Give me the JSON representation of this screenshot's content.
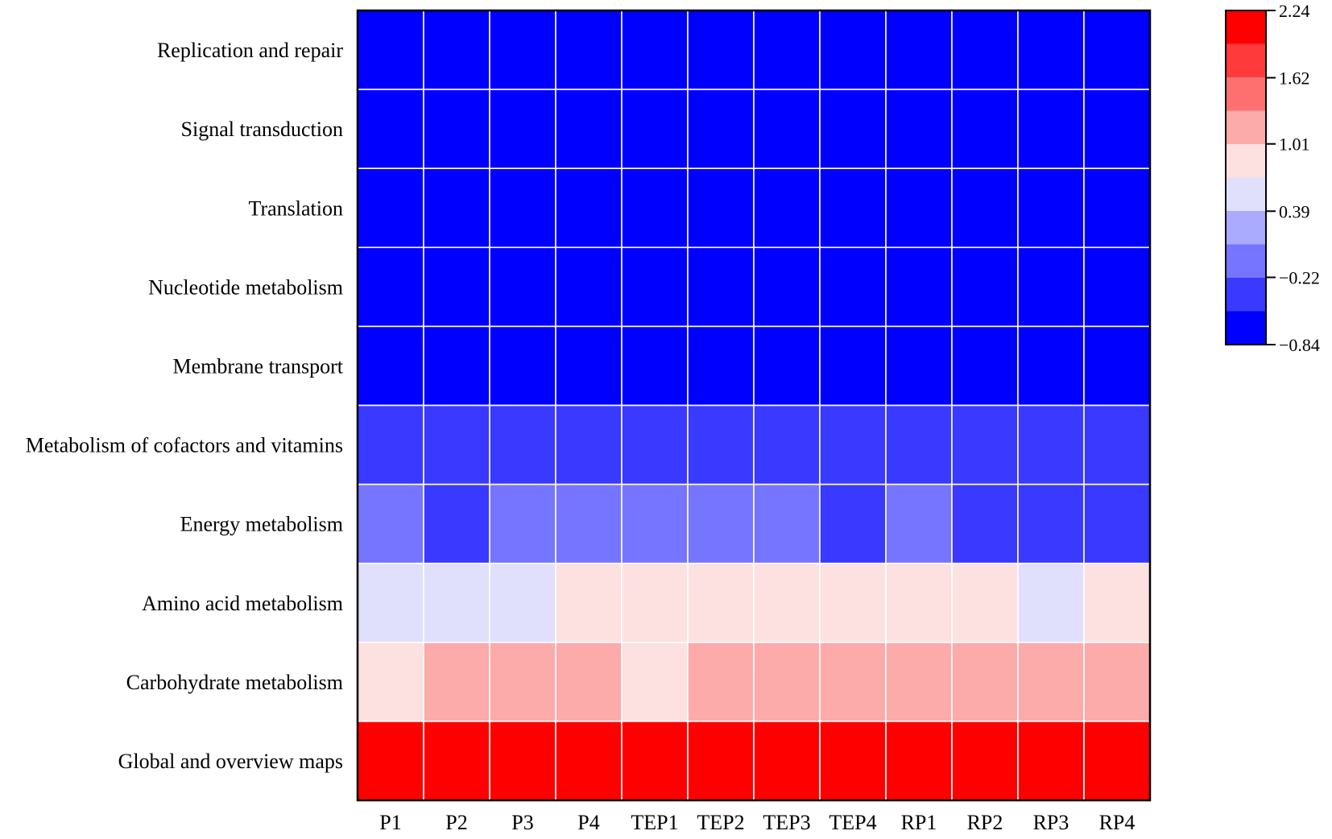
{
  "chart_data": {
    "type": "heatmap",
    "title": "",
    "xlabel": "",
    "ylabel": "",
    "columns": [
      "P1",
      "P2",
      "P3",
      "P4",
      "TEP1",
      "TEP2",
      "TEP3",
      "TEP4",
      "RP1",
      "RP2",
      "RP3",
      "RP4"
    ],
    "rows": [
      "Replication and repair",
      "Signal transduction",
      "Translation",
      "Nucleotide metabolism",
      "Membrane transport",
      "Metabolism of cofactors and vitamins",
      "Energy metabolism",
      "Amino acid metabolism",
      "Carbohydrate metabolism",
      "Global and overview maps"
    ],
    "values": [
      [
        -0.84,
        -0.84,
        -0.84,
        -0.84,
        -0.84,
        -0.84,
        -0.84,
        -0.84,
        -0.84,
        -0.84,
        -0.84,
        -0.84
      ],
      [
        -0.84,
        -0.84,
        -0.84,
        -0.84,
        -0.84,
        -0.84,
        -0.84,
        -0.84,
        -0.84,
        -0.84,
        -0.84,
        -0.84
      ],
      [
        -0.84,
        -0.84,
        -0.84,
        -0.84,
        -0.84,
        -0.84,
        -0.84,
        -0.84,
        -0.84,
        -0.84,
        -0.84,
        -0.84
      ],
      [
        -0.84,
        -0.84,
        -0.84,
        -0.84,
        -0.84,
        -0.84,
        -0.84,
        -0.84,
        -0.84,
        -0.84,
        -0.84,
        -0.84
      ],
      [
        -0.84,
        -0.84,
        -0.84,
        -0.84,
        -0.84,
        -0.84,
        -0.84,
        -0.84,
        -0.84,
        -0.84,
        -0.84,
        -0.84
      ],
      [
        -0.4,
        -0.4,
        -0.4,
        -0.4,
        -0.4,
        -0.4,
        -0.4,
        -0.4,
        -0.4,
        -0.4,
        -0.4,
        -0.4
      ],
      [
        -0.1,
        -0.4,
        -0.1,
        -0.1,
        -0.1,
        -0.1,
        -0.1,
        -0.4,
        -0.1,
        -0.4,
        -0.4,
        -0.4
      ],
      [
        0.55,
        0.55,
        0.55,
        0.85,
        0.85,
        0.85,
        0.85,
        0.85,
        0.85,
        0.85,
        0.55,
        0.85
      ],
      [
        0.85,
        1.2,
        1.2,
        1.2,
        0.85,
        1.2,
        1.2,
        1.2,
        1.2,
        1.2,
        1.2,
        1.2
      ],
      [
        2.24,
        2.24,
        2.24,
        2.24,
        2.24,
        2.24,
        2.24,
        2.24,
        2.24,
        2.24,
        2.24,
        2.24
      ]
    ],
    "color_scale": {
      "min": -0.84,
      "max": 2.24,
      "colors": [
        "#0000ff",
        "#3939ff",
        "#7575ff",
        "#aaaaff",
        "#e0e0fc",
        "#fde0e0",
        "#fcaaaa",
        "#fd7070",
        "#fe3a3a",
        "#ff0000"
      ],
      "tick_labels": [
        "2.24",
        "1.62",
        "1.01",
        "0.39",
        "−0.22",
        "−0.84"
      ],
      "tick_values": [
        2.24,
        1.62,
        1.01,
        0.39,
        -0.22,
        -0.84
      ]
    },
    "grid": true,
    "legend": "right"
  }
}
